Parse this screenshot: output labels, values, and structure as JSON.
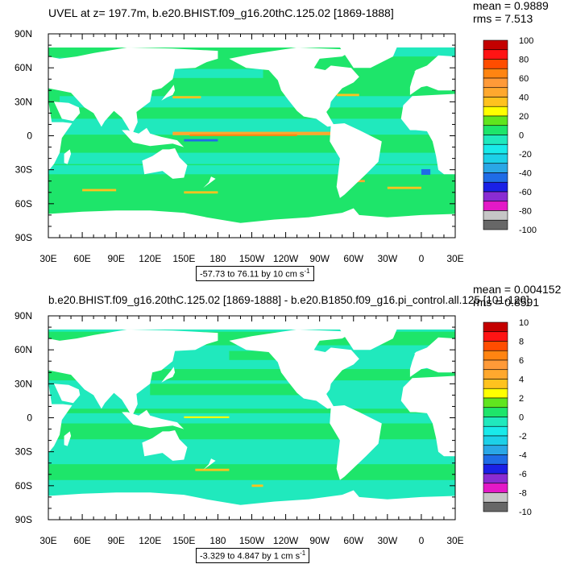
{
  "colors": {
    "land": "#ffffff",
    "frame": "#000000",
    "levels": [
      "#676767",
      "#c6c6c6",
      "#e419c7",
      "#8a2cd2",
      "#1a20e6",
      "#1f6ce6",
      "#2aa7e6",
      "#1dd0e8",
      "#19eaea",
      "#20e9bd",
      "#1ee56a",
      "#60e51e",
      "#ffff00",
      "#ffc21e",
      "#ffa82e",
      "#ff9a38",
      "#ff8411",
      "#ff4d00",
      "#ff1414",
      "#c40000"
    ]
  },
  "chart_data": [
    {
      "type": "heatmap",
      "title": "UVEL at z= 197.7m, b.e20.BHIST.f09_g16.20thC.125.02 [1869-1888]",
      "stats": {
        "mean": "mean = 0.9889",
        "rms": "rms = 7.513"
      },
      "range_text": "-57.73 to 76.11 by 10 cm s",
      "range_exp": "-1",
      "x_ticks": [
        "30E",
        "60E",
        "90E",
        "120E",
        "150E",
        "180",
        "150W",
        "120W",
        "90W",
        "60W",
        "30W",
        "0",
        "30E"
      ],
      "y_ticks": [
        "90N",
        "60N",
        "30N",
        "0",
        "30S",
        "60S",
        "90S"
      ],
      "xlim": [
        30,
        390
      ],
      "ylim": [
        -90,
        90
      ],
      "colorbar": {
        "labels": [
          "100",
          "80",
          "60",
          "40",
          "20",
          "0",
          "-20",
          "-40",
          "-60",
          "-80",
          "-100"
        ],
        "min": -100,
        "max": 100
      },
      "background_value": 1,
      "features": [
        {
          "lon": 30,
          "lat": -48,
          "w": 360,
          "h": 20,
          "value": 7
        },
        {
          "lon": 30,
          "lat": -58,
          "w": 360,
          "h": 10,
          "value": 4
        },
        {
          "lon": 30,
          "lat": -30,
          "w": 360,
          "h": 8,
          "value": -1
        },
        {
          "lon": 30,
          "lat": -20,
          "w": 360,
          "h": 10,
          "value": -6
        },
        {
          "lon": 30,
          "lat": 8,
          "w": 360,
          "h": 14,
          "value": -6
        },
        {
          "lon": 40,
          "lat": 30,
          "w": 350,
          "h": 10,
          "value": -5
        },
        {
          "lon": 140,
          "lat": 55,
          "w": 80,
          "h": 8,
          "value": -6
        },
        {
          "lon": 30,
          "lat": 60,
          "w": 80,
          "h": 18,
          "value": -6
        },
        {
          "lon": 310,
          "lat": 75,
          "w": 80,
          "h": 10,
          "value": -6
        },
        {
          "lon": 140,
          "lat": 2,
          "w": 140,
          "h": 3,
          "value": 40
        },
        {
          "lon": 155,
          "lat": 0.5,
          "w": 95,
          "h": 1.5,
          "value": 65
        },
        {
          "lon": 140,
          "lat": 34,
          "w": 25,
          "h": 2,
          "value": 30
        },
        {
          "lon": 285,
          "lat": 36,
          "w": 20,
          "h": 2,
          "value": 30
        },
        {
          "lon": 60,
          "lat": -48,
          "w": 30,
          "h": 2,
          "value": 30
        },
        {
          "lon": 150,
          "lat": -50,
          "w": 30,
          "h": 2,
          "value": 30
        },
        {
          "lon": 330,
          "lat": -46,
          "w": 30,
          "h": 2,
          "value": 30
        },
        {
          "lon": 300,
          "lat": -40,
          "w": 10,
          "h": 2,
          "value": 40
        },
        {
          "lon": 150,
          "lat": -4,
          "w": 30,
          "h": 2,
          "value": -45
        },
        {
          "lon": 360,
          "lat": -32,
          "w": 8,
          "h": 5,
          "value": -45
        }
      ]
    },
    {
      "type": "heatmap",
      "title": "b.e20.BHIST.f09_g16.20thC.125.02 [1869-1888] - b.e20.B1850.f09_g16.pi_control.all.125 [101-120]",
      "stats": {
        "mean": "mean = 0.004152",
        "rms": "rms = 0.8591"
      },
      "range_text": "-3.329 to 4.847 by 1 cm s",
      "range_exp": "-1",
      "x_ticks": [
        "30E",
        "60E",
        "90E",
        "120E",
        "150E",
        "180",
        "150W",
        "120W",
        "90W",
        "60W",
        "30W",
        "0",
        "30E"
      ],
      "y_ticks": [
        "90N",
        "60N",
        "30N",
        "0",
        "30S",
        "60S",
        "90S"
      ],
      "xlim": [
        30,
        390
      ],
      "ylim": [
        -90,
        90
      ],
      "colorbar": {
        "labels": [
          "10",
          "8",
          "6",
          "4",
          "2",
          "0",
          "-2",
          "-4",
          "-6",
          "-8",
          "-10"
        ],
        "min": -10,
        "max": 10
      },
      "background_value": -0.5,
      "features": [
        {
          "lon": 30,
          "lat": -48,
          "w": 360,
          "h": 14,
          "value": 0.5
        },
        {
          "lon": 30,
          "lat": -12,
          "w": 360,
          "h": 14,
          "value": 0.5
        },
        {
          "lon": 30,
          "lat": 38,
          "w": 360,
          "h": 10,
          "value": 0.5
        },
        {
          "lon": 120,
          "lat": 25,
          "w": 150,
          "h": 10,
          "value": 0.5
        },
        {
          "lon": 30,
          "lat": 70,
          "w": 360,
          "h": 12,
          "value": 0.5
        },
        {
          "lon": 190,
          "lat": 55,
          "w": 50,
          "h": 8,
          "value": 0.5
        },
        {
          "lon": 30,
          "lat": 6,
          "w": 360,
          "h": 4,
          "value": 0.5
        },
        {
          "lon": 160,
          "lat": -46,
          "w": 30,
          "h": 2,
          "value": 3
        },
        {
          "lon": 210,
          "lat": -60,
          "w": 10,
          "h": 2,
          "value": 3
        },
        {
          "lon": 150,
          "lat": 0.5,
          "w": 40,
          "h": 1.5,
          "value": 2.5
        }
      ]
    }
  ]
}
